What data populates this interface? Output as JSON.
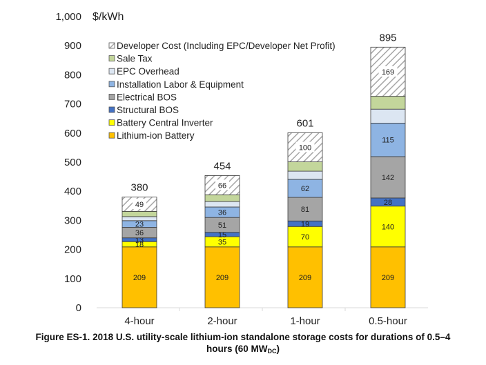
{
  "chart_data": {
    "type": "bar",
    "stacked": true,
    "title": "",
    "ylabel": "$/kWh",
    "xlabel": "",
    "ylim": [
      0,
      1000
    ],
    "yticks": [
      0,
      100,
      200,
      300,
      400,
      500,
      600,
      700,
      800,
      900,
      1000
    ],
    "ytick_labels": [
      "0",
      "100",
      "200",
      "300",
      "400",
      "500",
      "600",
      "700",
      "800",
      "900",
      "1,000"
    ],
    "grid": false,
    "legend_position": "top-left",
    "categories": [
      "4-hour",
      "2-hour",
      "1-hour",
      "0.5-hour"
    ],
    "totals": [
      380,
      454,
      601,
      895
    ],
    "series": [
      {
        "name": "Lithium-ion Battery",
        "color": "#FFC000",
        "values": [
          209,
          209,
          209,
          209
        ],
        "labels": [
          "209",
          "209",
          "209",
          "209"
        ]
      },
      {
        "name": "Battery Central Inverter",
        "color": "#FFFF00",
        "values": [
          18,
          35,
          70,
          140
        ],
        "labels": [
          "18",
          "35",
          "70",
          "140"
        ]
      },
      {
        "name": "Structural BOS",
        "color": "#4472C4",
        "values": [
          13,
          15,
          19,
          28
        ],
        "labels": [
          "13",
          "15",
          "19",
          "28"
        ]
      },
      {
        "name": "Electrical BOS",
        "color": "#A5A5A5",
        "values": [
          36,
          51,
          81,
          142
        ],
        "labels": [
          "36",
          "51",
          "81",
          "142"
        ]
      },
      {
        "name": "Installation Labor & Equipment",
        "color": "#8EB4E3",
        "values": [
          23,
          36,
          62,
          115
        ],
        "labels": [
          "23",
          "36",
          "62",
          "115"
        ]
      },
      {
        "name": "EPC Overhead",
        "color": "#DCE6F2",
        "values": [
          14,
          19,
          28,
          48
        ],
        "labels": [
          "",
          "",
          "",
          ""
        ]
      },
      {
        "name": "Sale Tax",
        "color": "#C3D69B",
        "values": [
          18,
          23,
          32,
          44
        ],
        "labels": [
          "",
          "",
          "",
          ""
        ]
      },
      {
        "name": "Developer Cost (Including EPC/Developer Net Profit)",
        "color": "hatch",
        "values": [
          49,
          66,
          100,
          169
        ],
        "labels": [
          "49",
          "66",
          "100",
          "169"
        ]
      }
    ]
  },
  "caption": {
    "line1": "Figure ES-1. 2018 U.S. utility-scale lithium-ion standalone storage costs for durations of 0.5–4",
    "line2_prefix": "hours (60 MW",
    "line2_sub": "DC",
    "line2_suffix": ")"
  }
}
